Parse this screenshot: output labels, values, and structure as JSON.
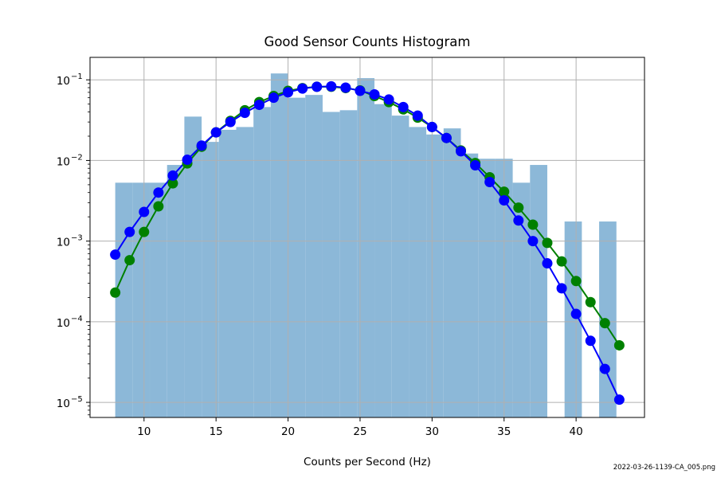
{
  "chart_data": {
    "type": "bar",
    "title": "Good Sensor Counts Histogram",
    "xlabel": "Counts per Second (Hz)",
    "ylabel": "",
    "xlim": [
      6.25,
      44.75
    ],
    "ylim": [
      6.5e-06,
      0.19
    ],
    "yscale": "log",
    "grid": true,
    "xticks": [
      {
        "value": 10,
        "label": "10"
      },
      {
        "value": 15,
        "label": "15"
      },
      {
        "value": 20,
        "label": "20"
      },
      {
        "value": 25,
        "label": "25"
      },
      {
        "value": 30,
        "label": "30"
      },
      {
        "value": 35,
        "label": "35"
      },
      {
        "value": 40,
        "label": "40"
      }
    ],
    "yticks": [
      {
        "value": 1e-05,
        "base": "10",
        "exp": "−5"
      },
      {
        "value": 0.0001,
        "base": "10",
        "exp": "−4"
      },
      {
        "value": 0.001,
        "base": "10",
        "exp": "−3"
      },
      {
        "value": 0.01,
        "base": "10",
        "exp": "−2"
      },
      {
        "value": 0.1,
        "base": "10",
        "exp": "−1"
      }
    ],
    "histogram": {
      "color": "#8cb8d8",
      "bins": [
        {
          "x0": 8.0,
          "x1": 9.2,
          "value": 0.0053
        },
        {
          "x0": 9.2,
          "x1": 10.4,
          "value": 0.0053
        },
        {
          "x0": 10.4,
          "x1": 11.6,
          "value": 0.0053
        },
        {
          "x0": 11.6,
          "x1": 12.8,
          "value": 0.0088
        },
        {
          "x0": 12.8,
          "x1": 14.0,
          "value": 0.035
        },
        {
          "x0": 14.0,
          "x1": 15.2,
          "value": 0.017
        },
        {
          "x0": 15.2,
          "x1": 16.4,
          "value": 0.024
        },
        {
          "x0": 16.4,
          "x1": 17.6,
          "value": 0.026
        },
        {
          "x0": 17.6,
          "x1": 18.8,
          "value": 0.046
        },
        {
          "x0": 18.8,
          "x1": 20.0,
          "value": 0.12
        },
        {
          "x0": 20.0,
          "x1": 21.2,
          "value": 0.06
        },
        {
          "x0": 21.2,
          "x1": 22.4,
          "value": 0.065
        },
        {
          "x0": 22.4,
          "x1": 23.6,
          "value": 0.04
        },
        {
          "x0": 23.6,
          "x1": 24.8,
          "value": 0.042
        },
        {
          "x0": 24.8,
          "x1": 26.0,
          "value": 0.105
        },
        {
          "x0": 26.0,
          "x1": 27.2,
          "value": 0.05
        },
        {
          "x0": 27.2,
          "x1": 28.4,
          "value": 0.036
        },
        {
          "x0": 28.4,
          "x1": 29.6,
          "value": 0.026
        },
        {
          "x0": 29.6,
          "x1": 30.8,
          "value": 0.021
        },
        {
          "x0": 30.8,
          "x1": 32.0,
          "value": 0.025
        },
        {
          "x0": 32.0,
          "x1": 33.2,
          "value": 0.0122
        },
        {
          "x0": 33.2,
          "x1": 34.4,
          "value": 0.0105
        },
        {
          "x0": 34.4,
          "x1": 35.6,
          "value": 0.0105
        },
        {
          "x0": 35.6,
          "x1": 36.8,
          "value": 0.0053
        },
        {
          "x0": 36.8,
          "x1": 38.0,
          "value": 0.0088
        },
        {
          "x0": 39.2,
          "x1": 40.4,
          "value": 0.00175
        },
        {
          "x0": 41.6,
          "x1": 42.8,
          "value": 0.00175
        }
      ]
    },
    "series": [
      {
        "color": "#008000",
        "x": [
          8,
          9,
          10,
          11,
          12,
          13,
          14,
          15,
          16,
          17,
          18,
          19,
          20,
          21,
          22,
          23,
          24,
          25,
          26,
          27,
          28,
          29,
          30,
          31,
          32,
          33,
          34,
          35,
          36,
          37,
          38,
          39,
          40,
          41,
          42,
          43
        ],
        "values": [
          0.00023,
          0.00058,
          0.0013,
          0.0027,
          0.0052,
          0.0092,
          0.0148,
          0.0223,
          0.031,
          0.042,
          0.053,
          0.063,
          0.073,
          0.079,
          0.082,
          0.082,
          0.079,
          0.074,
          0.063,
          0.053,
          0.043,
          0.034,
          0.026,
          0.019,
          0.0133,
          0.0093,
          0.0062,
          0.0041,
          0.0026,
          0.0016,
          0.00095,
          0.00056,
          0.00032,
          0.000175,
          9.6e-05,
          5.1e-05
        ]
      },
      {
        "color": "#0000ff",
        "x": [
          8,
          9,
          10,
          11,
          12,
          13,
          14,
          15,
          16,
          17,
          18,
          19,
          20,
          21,
          22,
          23,
          24,
          25,
          26,
          27,
          28,
          29,
          30,
          31,
          32,
          33,
          34,
          35,
          36,
          37,
          38,
          39,
          40,
          41,
          42,
          43
        ],
        "values": [
          0.00068,
          0.0013,
          0.0023,
          0.004,
          0.0065,
          0.0102,
          0.0153,
          0.0223,
          0.03,
          0.039,
          0.049,
          0.06,
          0.07,
          0.078,
          0.082,
          0.083,
          0.08,
          0.073,
          0.066,
          0.057,
          0.046,
          0.036,
          0.026,
          0.019,
          0.013,
          0.0087,
          0.0054,
          0.0032,
          0.0018,
          0.001,
          0.00053,
          0.00026,
          0.000125,
          5.8e-05,
          2.6e-05,
          1.08e-05
        ]
      }
    ]
  },
  "footnote": "2022-03-26-1139-CA_005.png"
}
